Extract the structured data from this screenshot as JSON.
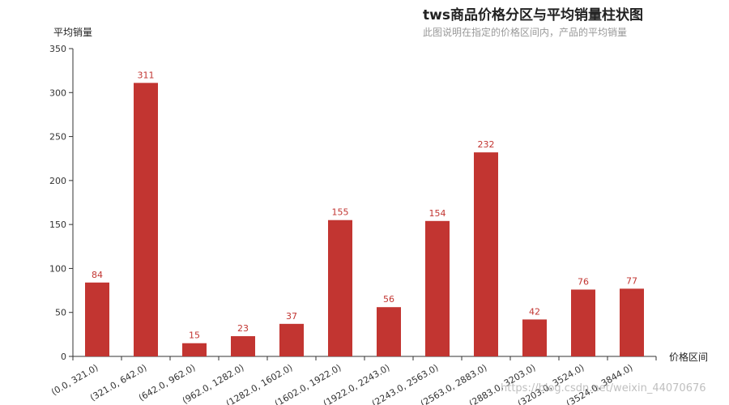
{
  "chart_data": {
    "type": "bar",
    "title": "tws商品价格分区与平均销量柱状图",
    "subtitle": "此图说明在指定的价格区间内，产品的平均销量",
    "xlabel": "价格区间",
    "ylabel": "平均销量",
    "ylim": [
      0,
      350
    ],
    "yticks": [
      0,
      50,
      100,
      150,
      200,
      250,
      300,
      350
    ],
    "categories": [
      "(0.0, 321.0)",
      "(321.0, 642.0)",
      "(642.0, 962.0)",
      "(962.0, 1282.0)",
      "(1282.0, 1602.0)",
      "(1602.0, 1922.0)",
      "(1922.0, 2243.0)",
      "(2243.0, 2563.0)",
      "(2563.0, 2883.0)",
      "(2883.0, 3203.0)",
      "(3203.0, 3524.0)",
      "(3524.0, 3844.0)"
    ],
    "values": [
      84,
      311,
      15,
      23,
      37,
      155,
      56,
      154,
      232,
      42,
      76,
      77
    ],
    "bar_color": "#c23531",
    "grid": false
  },
  "watermark": "https://blog.csdn.net/weixin_44070676"
}
